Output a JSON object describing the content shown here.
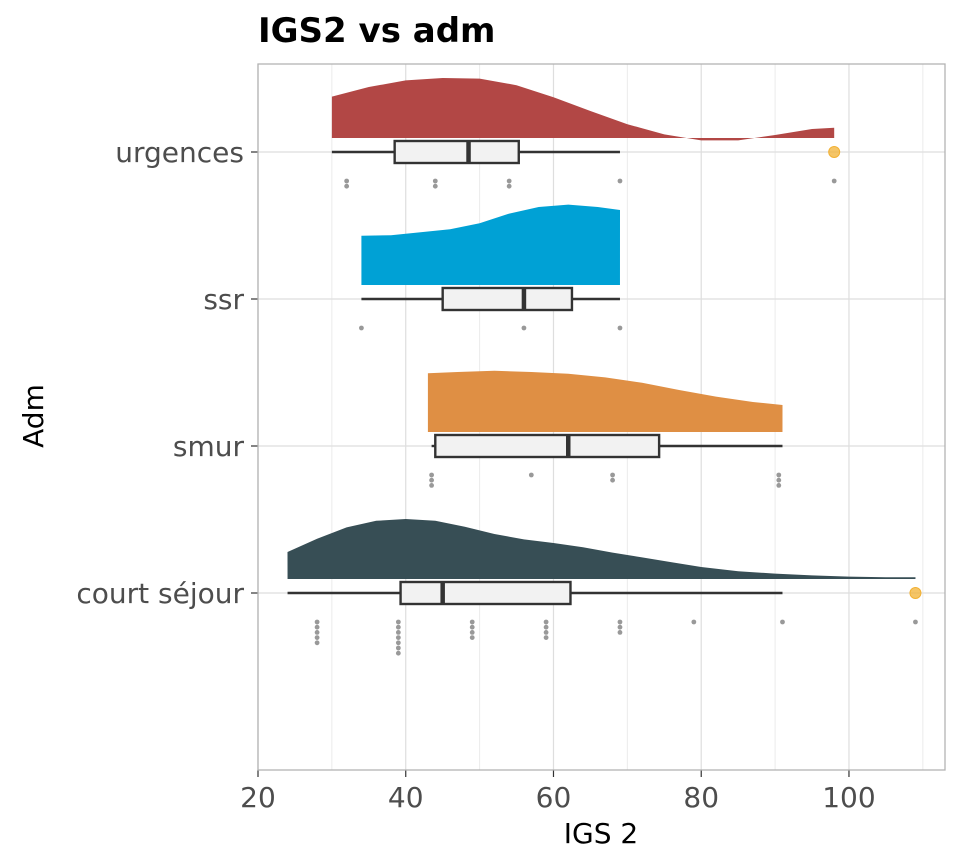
{
  "chart_data": {
    "type": "raincloud",
    "title": "IGS2 vs adm",
    "xlabel": "IGS 2",
    "ylabel": "Adm",
    "xlim": [
      20,
      113
    ],
    "xticks": [
      20,
      40,
      60,
      80,
      100
    ],
    "grid": true,
    "legend": "none",
    "categories": [
      "urgences",
      "ssr",
      "smur",
      "court séjour"
    ],
    "colors": {
      "urgences": "#b24745",
      "ssr": "#00a1d5",
      "smur": "#df8f44",
      "court séjour": "#374e55",
      "outlier": "#f2b134",
      "points": "#999999",
      "box_fill": "#f2f2f2",
      "box_line": "#333333"
    },
    "series": [
      {
        "category": "urgences",
        "box": {
          "min": 30,
          "q1": 38.5,
          "median": 48.5,
          "q3": 55.3,
          "max": 69
        },
        "outliers": [
          98
        ],
        "points": [
          [
            32,
            2
          ],
          [
            44,
            2
          ],
          [
            54,
            2
          ],
          [
            69,
            1
          ],
          [
            98,
            1
          ]
        ],
        "density": {
          "x": [
            30,
            35,
            40,
            45,
            50,
            55,
            60,
            65,
            70,
            75,
            80,
            85,
            90,
            95,
            98
          ],
          "y": [
            0.69,
            0.85,
            0.96,
            1.0,
            0.99,
            0.88,
            0.68,
            0.45,
            0.23,
            0.06,
            -0.04,
            -0.04,
            0.05,
            0.15,
            0.17
          ]
        }
      },
      {
        "category": "ssr",
        "box": {
          "min": 34,
          "q1": 45,
          "median": 56,
          "q3": 62.5,
          "max": 69
        },
        "outliers": [],
        "points": [
          [
            34,
            1
          ],
          [
            56,
            1
          ],
          [
            69,
            1
          ]
        ],
        "density": {
          "x": [
            34,
            38,
            42,
            46,
            50,
            54,
            58,
            62,
            66,
            69
          ],
          "y": [
            0.82,
            0.83,
            0.88,
            0.93,
            1.03,
            1.19,
            1.3,
            1.34,
            1.3,
            1.25
          ]
        }
      },
      {
        "category": "smur",
        "box": {
          "min": 43.5,
          "q1": 44,
          "median": 62,
          "q3": 74.3,
          "max": 91
        },
        "outliers": [],
        "points": [
          [
            43.5,
            3
          ],
          [
            57,
            1
          ],
          [
            68,
            2
          ],
          [
            90.5,
            3
          ]
        ],
        "density": {
          "x": [
            43,
            47,
            52,
            57,
            62,
            67,
            72,
            77,
            82,
            87,
            91
          ],
          "y": [
            0.98,
            1.0,
            1.02,
            1.0,
            0.97,
            0.91,
            0.82,
            0.7,
            0.59,
            0.5,
            0.45
          ]
        }
      },
      {
        "category": "court séjour",
        "box": {
          "min": 24,
          "q1": 39.3,
          "median": 45,
          "q3": 62.3,
          "max": 91
        },
        "outliers": [
          109
        ],
        "points": [
          [
            28,
            5
          ],
          [
            39,
            7
          ],
          [
            49,
            4
          ],
          [
            59,
            4
          ],
          [
            69,
            3
          ],
          [
            79,
            1
          ],
          [
            91,
            1
          ],
          [
            109,
            1
          ]
        ],
        "density": {
          "x": [
            24,
            28,
            32,
            36,
            40,
            44,
            48,
            52,
            56,
            60,
            64,
            68,
            72,
            76,
            80,
            85,
            90,
            95,
            100,
            105,
            109
          ],
          "y": [
            0.45,
            0.67,
            0.86,
            0.97,
            1.0,
            0.97,
            0.87,
            0.75,
            0.66,
            0.6,
            0.53,
            0.44,
            0.36,
            0.28,
            0.2,
            0.13,
            0.09,
            0.06,
            0.04,
            0.03,
            0.03
          ]
        }
      }
    ]
  }
}
